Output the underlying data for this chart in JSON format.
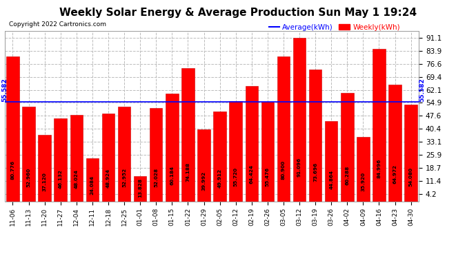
{
  "title": "Weekly Solar Energy & Average Production Sun May 1 19:24",
  "copyright": "Copyright 2022 Cartronics.com",
  "legend_average": "Average(kWh)",
  "legend_weekly": "Weekly(kWh)",
  "average_value": 55.582,
  "categories": [
    "11-06",
    "11-13",
    "11-20",
    "11-27",
    "12-04",
    "12-11",
    "12-18",
    "12-25",
    "01-01",
    "01-08",
    "01-15",
    "01-22",
    "01-29",
    "02-05",
    "02-12",
    "02-19",
    "02-26",
    "03-05",
    "03-12",
    "03-19",
    "03-26",
    "04-02",
    "04-09",
    "04-16",
    "04-23",
    "04-30"
  ],
  "values": [
    80.776,
    52.96,
    37.12,
    46.132,
    48.024,
    24.084,
    48.924,
    52.952,
    13.828,
    52.028,
    60.184,
    74.188,
    39.992,
    49.912,
    55.72,
    64.424,
    55.476,
    80.9,
    91.096,
    73.696,
    44.864,
    60.288,
    35.92,
    84.996,
    64.972,
    54.08
  ],
  "bar_color": "#ff0000",
  "bar_edge_color": "#cc0000",
  "average_line_color": "#0000ff",
  "average_label_color": "#0000ff",
  "weekly_label_color": "#ff0000",
  "title_color": "#000000",
  "background_color": "#ffffff",
  "grid_color": "#bbbbbb",
  "yticks": [
    4.2,
    11.4,
    18.7,
    25.9,
    33.1,
    40.4,
    47.6,
    54.9,
    62.1,
    69.4,
    76.6,
    83.9,
    91.1
  ],
  "ylim": [
    0,
    95
  ],
  "title_fontsize": 11,
  "bar_value_fontsize": 5.2,
  "axis_label_fontsize": 7.5,
  "copyright_fontsize": 6.5
}
